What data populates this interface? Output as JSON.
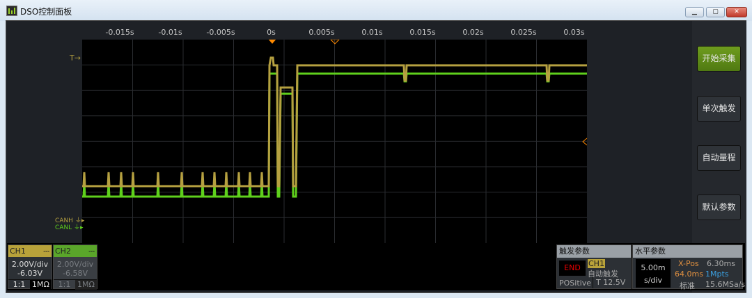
{
  "window": {
    "title": "DSO控制面板",
    "minimize": "▁",
    "maximize": "▢",
    "close": "✕"
  },
  "time_axis": {
    "ticks": [
      "-0.015s",
      "-0.01s",
      "-0.005s",
      "0s",
      "0.005s",
      "0.01s",
      "0.015s",
      "0.02s",
      "0.025s",
      "0.03s"
    ]
  },
  "markers": {
    "trigger_level": "T",
    "ch1_ground": "CANH",
    "ch2_ground": "CANL"
  },
  "buttons": {
    "start": "开始采集",
    "single": "单次触发",
    "auto": "自动量程",
    "default": "默认参数"
  },
  "channels": [
    {
      "name": "CH1",
      "coupling": "DC",
      "scale": "2.00V/div",
      "offset": "-6.03V",
      "probe": "1:1",
      "impedance": "1MΩ",
      "color": "#b8a23a",
      "active": true
    },
    {
      "name": "CH2",
      "coupling": "DC",
      "scale": "2.00V/div",
      "offset": "-6.58V",
      "probe": "1:1",
      "impedance": "1MΩ",
      "color": "#5aa62a",
      "active": false
    }
  ],
  "trigger": {
    "title": "触发参数",
    "status": "END",
    "source": "CH1",
    "mode": "自动触发",
    "edge": "POSitive",
    "level": "T 12.5V"
  },
  "horizontal": {
    "title": "水平参数",
    "timebase_value": "5.00m",
    "timebase_unit": "s/div",
    "xpos_label": "X-Pos",
    "xpos_value": "6.30ms",
    "span": "64.0ms",
    "depth": "1Mpts",
    "mode": "标准",
    "rate": "15.6MSa/s"
  },
  "colors": {
    "ch1_trace": "#b5a040",
    "ch2_trace": "#5fd01c",
    "accent_orange": "#ff8a00"
  }
}
